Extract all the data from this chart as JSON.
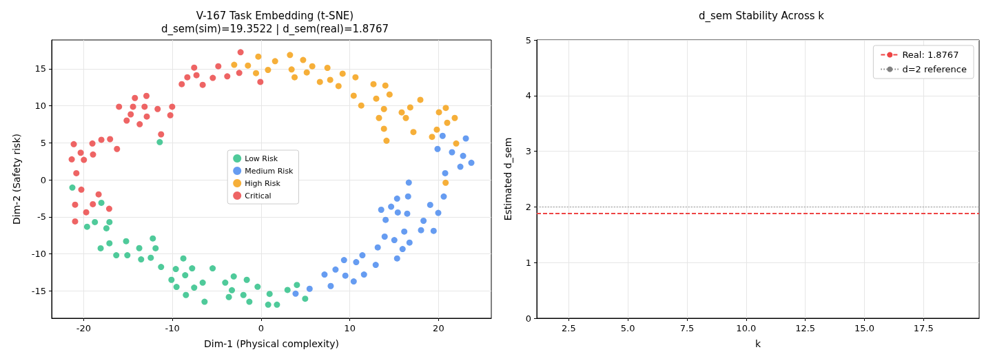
{
  "chart_data": [
    {
      "type": "scatter",
      "title": "V-167 Task Embedding (t-SNE)\nd_sem(sim)=19.3522 | d_sem(real)=1.8767",
      "xlabel": "Dim-1 (Physical complexity)",
      "ylabel": "Dim-2 (Safety risk)",
      "xlim": [
        -23.6,
        25.95
      ],
      "ylim": [
        -18.7,
        18.9
      ],
      "xticks": [
        -20,
        -10,
        0,
        10,
        20
      ],
      "yticks": [
        -15,
        -10,
        -5,
        0,
        5,
        10,
        15
      ],
      "grid": true,
      "legend": "center",
      "marker": "circle",
      "series": [
        {
          "name": "Low Risk",
          "color": "#3cc48f",
          "x": [
            -11.42,
            -21.27,
            -18.0,
            -18.73,
            -19.61,
            -17.09,
            -17.43,
            -18.08,
            -17.09,
            -15.21,
            -12.2,
            -16.32,
            -15.07,
            -13.73,
            -11.89,
            -13.52,
            -12.43,
            -11.27,
            -8.76,
            -9.61,
            -7.77,
            -8.55,
            -5.46,
            -10.1,
            -9.53,
            -7.54,
            -6.58,
            -8.47,
            -6.37,
            -4.04,
            -3.08,
            -3.29,
            -3.63,
            -1.61,
            -1.99,
            -1.32,
            -0.39,
            0.96,
            0.8,
            1.79,
            2.98,
            4.04,
            4.97
          ],
          "values": [
            5.1,
            -1.05,
            -3.1,
            -5.71,
            -6.34,
            -5.71,
            -6.55,
            -9.25,
            -8.57,
            -8.29,
            -7.92,
            -10.19,
            -10.19,
            -9.23,
            -9.25,
            -10.75,
            -10.53,
            -11.77,
            -10.62,
            -12.05,
            -11.96,
            -12.89,
            -11.96,
            -13.51,
            -14.47,
            -14.57,
            -13.89,
            -15.56,
            -16.47,
            -13.89,
            -13.05,
            -14.91,
            -15.84,
            -13.51,
            -15.56,
            -16.47,
            -14.45,
            -15.41,
            -16.87,
            -16.87,
            -14.88,
            -14.2,
            -16.06
          ]
        },
        {
          "name": "Medium Risk",
          "color": "#5591f0",
          "x": [
            3.89,
            5.47,
            7.85,
            7.15,
            8.39,
            9.5,
            9.35,
            10.44,
            10.72,
            11.6,
            11.42,
            12.92,
            13.15,
            13.93,
            15.02,
            15.33,
            15.95,
            16.73,
            16.14,
            14.04,
            13.54,
            14.66,
            15.41,
            15.33,
            16.47,
            16.57,
            16.65,
            18.03,
            18.31,
            19.45,
            19.06,
            19.97,
            20.59,
            20.46,
            23.08,
            19.89,
            21.52,
            22.77,
            23.7,
            22.46,
            20.75
          ],
          "values": [
            -15.38,
            -14.72,
            -14.35,
            -12.8,
            -12.12,
            -12.95,
            -10.84,
            -13.73,
            -11.12,
            -12.8,
            -10.19,
            -11.49,
            -9.13,
            -7.67,
            -8.14,
            -10.62,
            -9.35,
            -8.48,
            -6.99,
            -5.41,
            -4.04,
            -3.63,
            -4.41,
            -2.54,
            -4.57,
            -2.24,
            -0.37,
            -6.8,
            -5.53,
            -6.9,
            -3.38,
            -4.47,
            -2.26,
            5.94,
            5.59,
            4.17,
            3.73,
            3.23,
            2.3,
            1.77,
            0.9
          ]
        },
        {
          "name": "High Risk",
          "color": "#f5a623",
          "x": [
            -3.03,
            -1.48,
            -0.31,
            -0.57,
            0.78,
            1.58,
            3.26,
            3.44,
            3.78,
            4.74,
            5.77,
            5.15,
            6.63,
            7.48,
            7.79,
            8.73,
            9.19,
            10.64,
            10.44,
            11.29,
            12.67,
            14.01,
            14.48,
            12.98,
            13.85,
            13.29,
            13.85,
            14.14,
            17.95,
            16.81,
            15.85,
            16.32,
            17.17,
            20.82,
            20.05,
            21.83,
            20.98,
            19.81,
            19.27,
            21.99,
            20.8
          ],
          "values": [
            15.54,
            15.44,
            16.65,
            14.42,
            14.85,
            16.03,
            16.87,
            14.91,
            13.86,
            16.19,
            15.35,
            14.51,
            13.23,
            15.13,
            13.51,
            12.67,
            14.35,
            13.86,
            11.37,
            10.04,
            12.93,
            12.74,
            11.53,
            10.97,
            9.57,
            8.36,
            6.9,
            5.28,
            10.81,
            9.79,
            9.11,
            8.36,
            6.46,
            9.72,
            9.13,
            8.36,
            7.71,
            6.78,
            5.81,
            4.91,
            -0.4
          ]
        },
        {
          "name": "Critical",
          "color": "#ec5353",
          "x": [
            -2.31,
            -4.82,
            -7.54,
            -8.31,
            -7.28,
            -8.94,
            -6.58,
            -5.44,
            -3.81,
            -2.46,
            -0.08,
            -12.92,
            -14.22,
            -16.01,
            -14.43,
            -13.13,
            -11.66,
            -10.02,
            -14.69,
            -12.88,
            -10.23,
            -15.15,
            -13.68,
            -11.27,
            -21.11,
            -19.01,
            -18.0,
            -17.02,
            -20.33,
            -18.94,
            -16.24,
            -21.34,
            -19.97,
            -20.82,
            -20.26,
            -18.31,
            -20.96,
            -18.96,
            -19.71,
            -17.12,
            -20.96
          ],
          "values": [
            17.24,
            15.35,
            15.16,
            13.86,
            14.14,
            12.93,
            12.83,
            13.77,
            13.98,
            14.45,
            13.23,
            11.34,
            11.06,
            9.88,
            9.88,
            9.88,
            9.57,
            9.88,
            8.85,
            8.55,
            8.73,
            8.01,
            7.52,
            6.15,
            4.82,
            4.91,
            5.41,
            5.5,
            3.66,
            3.42,
            4.17,
            2.77,
            2.7,
            0.9,
            -1.33,
            -1.96,
            -3.36,
            -3.29,
            -4.38,
            -3.91,
            -5.62
          ]
        }
      ]
    },
    {
      "type": "line",
      "title": "d_sem Stability Across k",
      "xlabel": "k",
      "ylabel": "Estimated d_sem",
      "xlim": [
        1.15,
        19.85
      ],
      "ylim": [
        0,
        5
      ],
      "xticks": [
        2.5,
        {
          "value": 5,
          "label": "5.0"
        },
        7.5,
        {
          "value": 10,
          "label": "10.0"
        },
        12.5,
        {
          "value": 15,
          "label": "15.0"
        },
        17.5
      ],
      "yticks": [
        0,
        1,
        2,
        3,
        4,
        5
      ],
      "grid": true,
      "legend": "top right",
      "ref_lines": [
        {
          "axis": "y",
          "value": 1.8767,
          "label": "Real: 1.8767",
          "color": "#ee4444",
          "line_style": "dashed"
        },
        {
          "axis": "y",
          "value": 2,
          "label": "d=2 reference",
          "color": "#808080",
          "line_style": "dotted"
        }
      ]
    }
  ]
}
